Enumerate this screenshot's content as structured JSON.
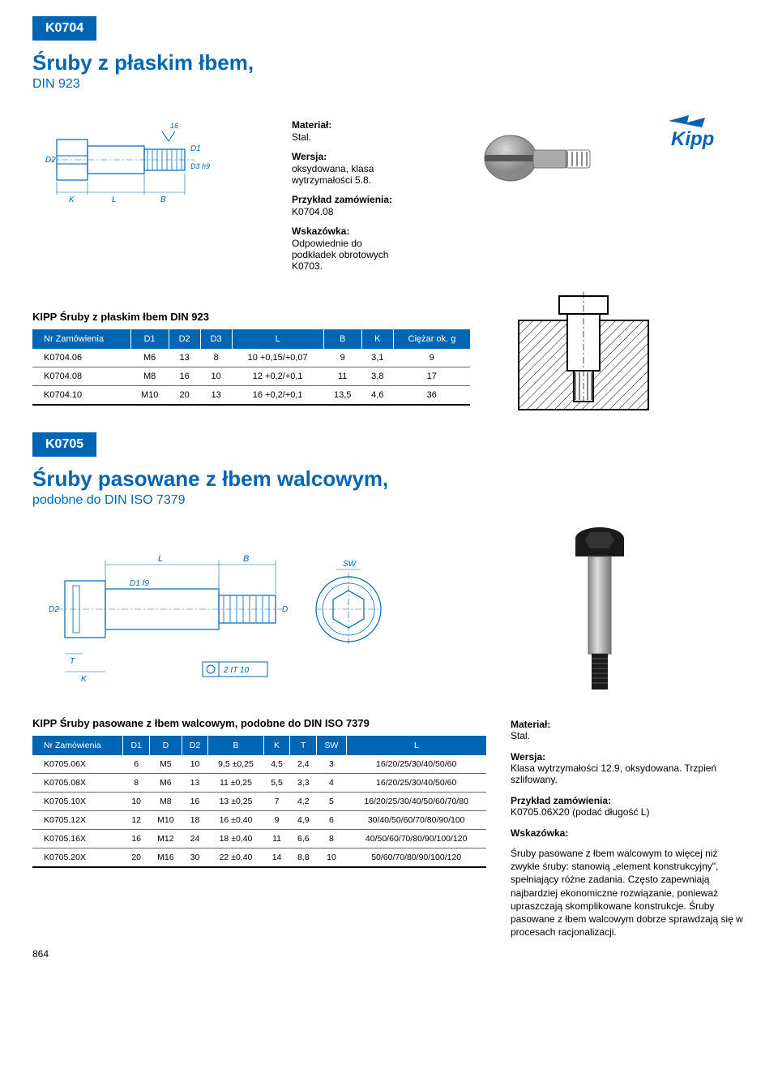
{
  "page_number": "864",
  "brand_logo_text": "Kipp",
  "section1": {
    "badge": "K0704",
    "title": "Śruby z płaskim łbem,",
    "subtitle": "DIN 923",
    "info": {
      "material_label": "Materiał:",
      "material_value": "Stal.",
      "version_label": "Wersja:",
      "version_value": "oksydowana, klasa wytrzymałości 5.8.",
      "order_label": "Przykład zamówienia:",
      "order_value": "K0704.08",
      "hint_label": "Wskazówka:",
      "hint_value": "Odpowiednie do podkładek obrotowych K0703."
    },
    "table_title": "KIPP Śruby z płaskim łbem DIN 923",
    "columns": [
      "Nr Zamówienia",
      "D1",
      "D2",
      "D3",
      "L",
      "B",
      "K",
      "Ciężar ok. g"
    ],
    "rows": [
      [
        "K0704.06",
        "M6",
        "13",
        "8",
        "10 +0,15/+0,07",
        "9",
        "3,1",
        "9"
      ],
      [
        "K0704.08",
        "M8",
        "16",
        "10",
        "12 +0,2/+0,1",
        "11",
        "3,8",
        "17"
      ],
      [
        "K0704.10",
        "M10",
        "20",
        "13",
        "16 +0,2/+0,1",
        "13,5",
        "4,6",
        "36"
      ]
    ],
    "diagram_labels": {
      "D2": "D2",
      "D1": "D1",
      "D3": "D3 h9",
      "K": "K",
      "L": "L",
      "B": "B",
      "surf": "16"
    }
  },
  "section2": {
    "badge": "K0705",
    "title": "Śruby pasowane z łbem walcowym,",
    "subtitle": "podobne do DIN ISO 7379",
    "diagram_labels": {
      "L": "L",
      "B": "B",
      "SW": "SW",
      "D2": "D2",
      "D1": "D1 f9",
      "D": "D",
      "T": "T",
      "K": "K",
      "tol": "2  IT 10"
    },
    "info": {
      "material_label": "Materiał:",
      "material_value": "Stal.",
      "version_label": "Wersja:",
      "version_value": "Klasa wytrzymałości 12.9, oksydowana. Trzpień szlifowany.",
      "order_label": "Przykład zamówienia:",
      "order_value": "K0705.06X20 (podać długość L)",
      "hint_label": "Wskazówka:",
      "hint_value": "Śruby pasowane z łbem walcowym to więcej niż zwykłe śruby: stanowią „element konstrukcyjny\", spełniający różne zadania. Często zapewniają najbardziej ekonomiczne rozwiązanie, ponieważ upraszczają skomplikowane konstrukcje. Śruby pasowane z łbem walcowym dobrze sprawdzają się w procesach racjonalizacji."
    },
    "table_title": "KIPP Śruby pasowane z łbem walcowym, podobne do DIN ISO 7379",
    "columns": [
      "Nr Zamówienia",
      "D1",
      "D",
      "D2",
      "B",
      "K",
      "T",
      "SW",
      "L"
    ],
    "rows": [
      [
        "K0705.06X",
        "6",
        "M5",
        "10",
        "9,5 ±0,25",
        "4,5",
        "2,4",
        "3",
        "16/20/25/30/40/50/60"
      ],
      [
        "K0705.08X",
        "8",
        "M6",
        "13",
        "11 ±0,25",
        "5,5",
        "3,3",
        "4",
        "16/20/25/30/40/50/60"
      ],
      [
        "K0705.10X",
        "10",
        "M8",
        "16",
        "13 ±0,25",
        "7",
        "4,2",
        "5",
        "16/20/25/30/40/50/60/70/80"
      ],
      [
        "K0705.12X",
        "12",
        "M10",
        "18",
        "16 ±0,40",
        "9",
        "4,9",
        "6",
        "30/40/50/60/70/80/90/100"
      ],
      [
        "K0705.16X",
        "16",
        "M12",
        "24",
        "18 ±0,40",
        "11",
        "6,6",
        "8",
        "40/50/60/70/80/90/100/120"
      ],
      [
        "K0705.20X",
        "20",
        "M16",
        "30",
        "22 ±0,40",
        "14",
        "8,8",
        "10",
        "50/60/70/80/90/100/120"
      ]
    ]
  },
  "colors": {
    "brand_blue": "#0066b3",
    "text": "#000000",
    "rule": "#666666",
    "bg": "#ffffff"
  }
}
